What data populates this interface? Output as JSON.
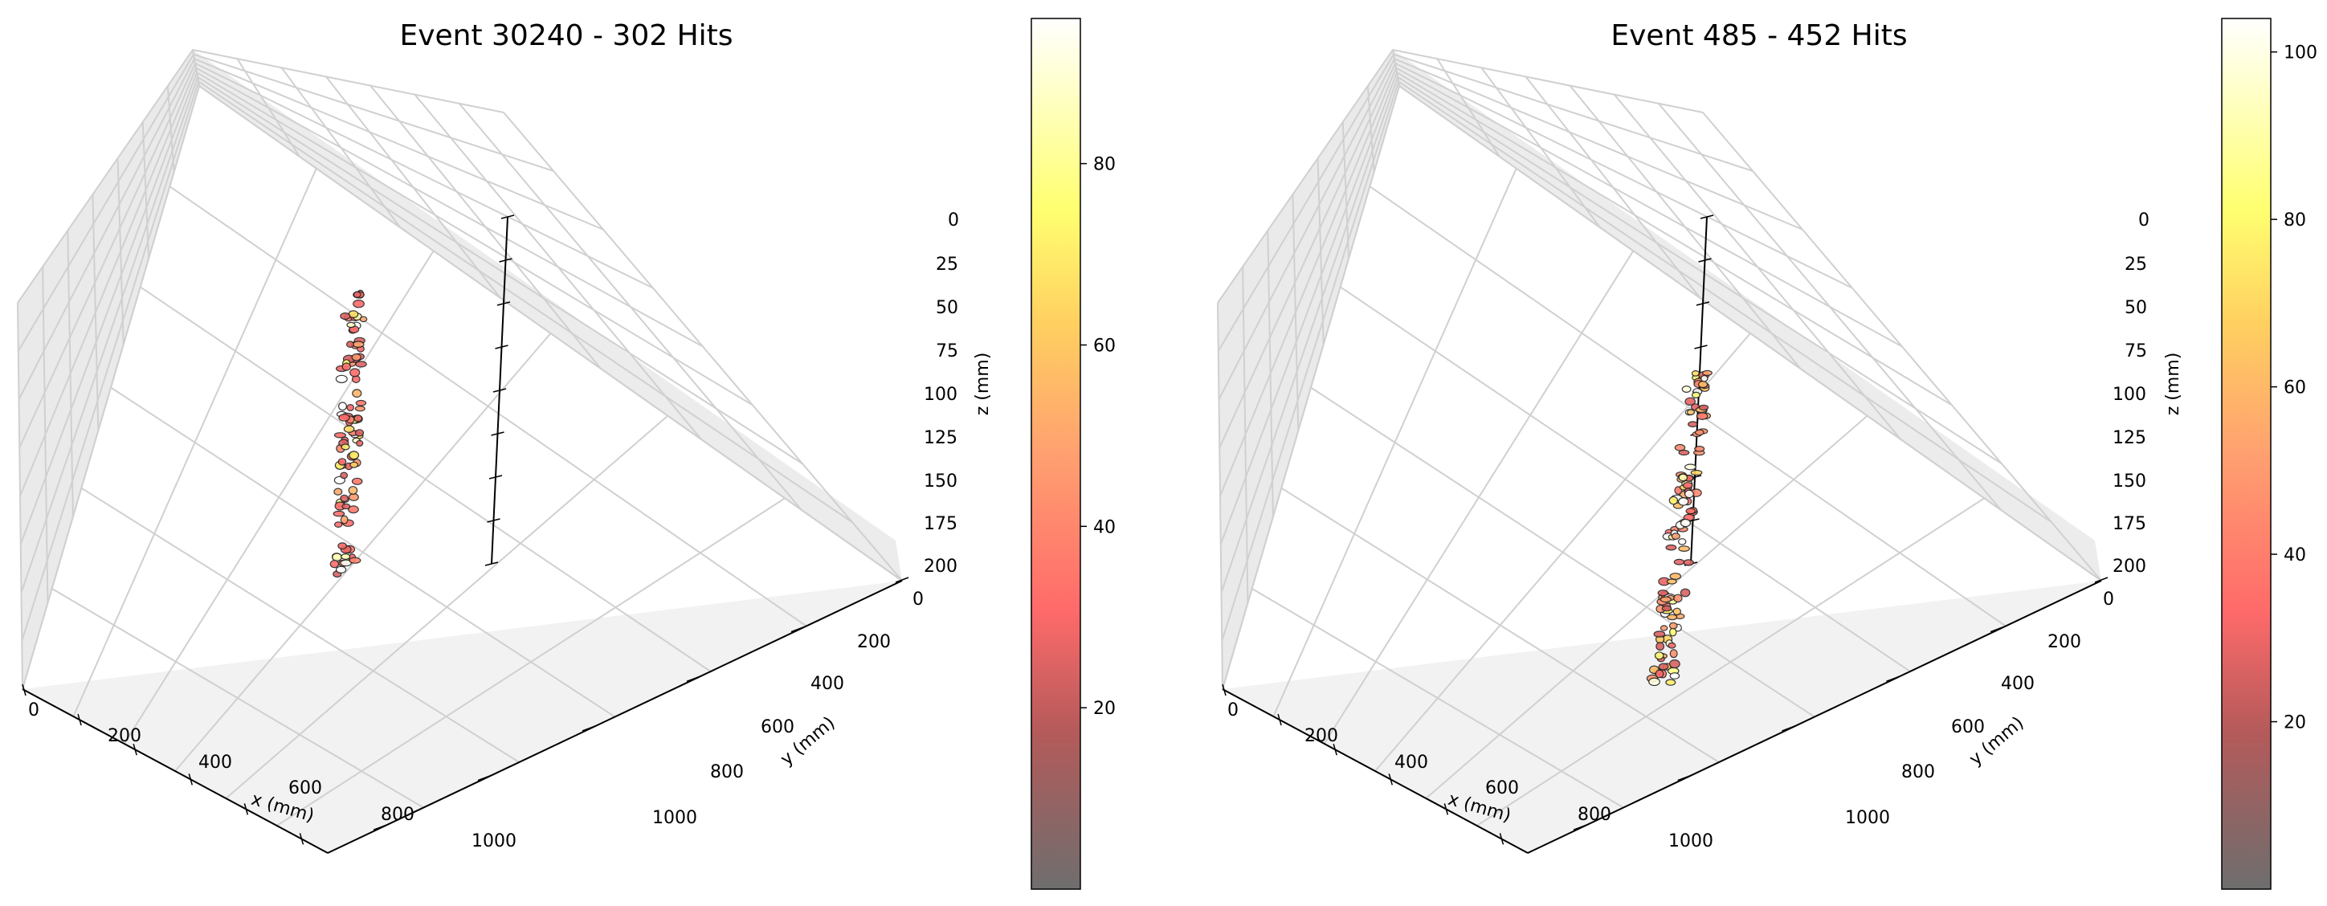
{
  "chart_data": [
    {
      "type": "scatter3d",
      "title": "Event 30240 - 302 Hits",
      "xlabel": "x (mm)",
      "ylabel": "y (mm)",
      "zlabel": "z (mm)",
      "xlim": [
        0,
        1100
      ],
      "ylim": [
        0,
        1100
      ],
      "zlim": [
        0,
        200
      ],
      "z_inverted": true,
      "grid": true,
      "xticks": [
        "0",
        "200",
        "400",
        "600",
        "800",
        "1000"
      ],
      "yticks": [
        "0",
        "200",
        "400",
        "600",
        "800",
        "1000"
      ],
      "zticks": [
        "0",
        "25",
        "50",
        "75",
        "100",
        "125",
        "150",
        "175",
        "200"
      ],
      "colorbar": {
        "range": [
          0,
          96
        ],
        "ticks": [
          "20",
          "40",
          "60",
          "80"
        ],
        "colormap": "hot-reversed"
      },
      "track": {
        "x_start": 600,
        "y_start": 350,
        "z_start": 40,
        "x_end": 600,
        "y_end": 250,
        "z_end": 200,
        "hits": 302
      }
    },
    {
      "type": "scatter3d",
      "title": "Event 485 - 452 Hits",
      "xlabel": "x (mm)",
      "ylabel": "y (mm)",
      "zlabel": "z (mm)",
      "xlim": [
        0,
        1100
      ],
      "ylim": [
        0,
        1100
      ],
      "zlim": [
        0,
        200
      ],
      "z_inverted": true,
      "grid": true,
      "xticks": [
        "0",
        "200",
        "400",
        "600",
        "800",
        "1000"
      ],
      "yticks": [
        "0",
        "200",
        "400",
        "600",
        "800",
        "1000"
      ],
      "zticks": [
        "0",
        "25",
        "50",
        "75",
        "100",
        "125",
        "150",
        "175",
        "200"
      ],
      "colorbar": {
        "range": [
          0,
          104
        ],
        "ticks": [
          "20",
          "40",
          "60",
          "80",
          "100"
        ],
        "colormap": "hot-reversed"
      },
      "track": {
        "x_start": 550,
        "y_start": 500,
        "z_start": 90,
        "x_end": 600,
        "y_end": 500,
        "z_end": 200,
        "hits": 452
      }
    }
  ]
}
